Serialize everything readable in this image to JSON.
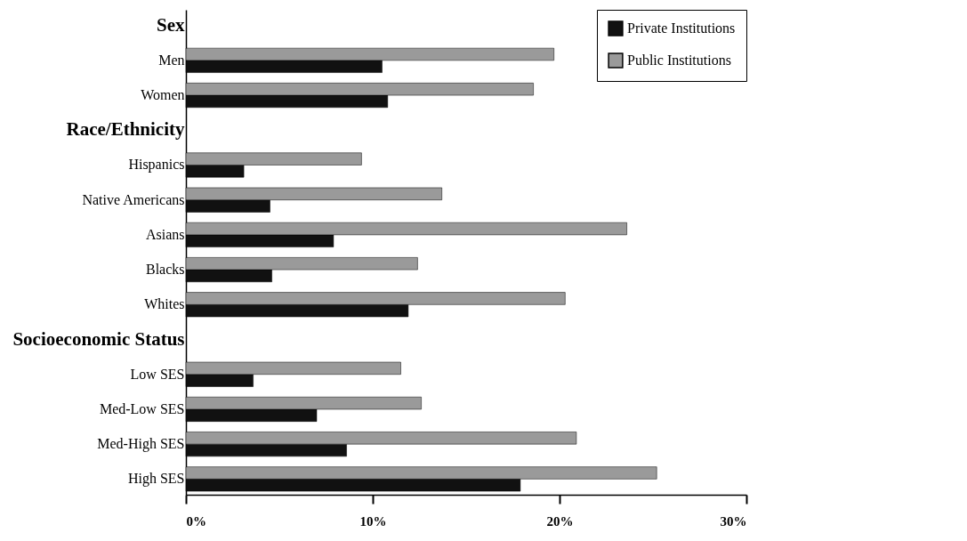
{
  "chart_data": {
    "type": "bar",
    "orientation": "horizontal",
    "categories": [
      "Sex",
      "Men",
      "Women",
      "Race/Ethnicity",
      "Hispanics",
      "Native Americans",
      "Asians",
      "Blacks",
      "Whites",
      "Socioeconomic  Status",
      "Low SES",
      "Med-Low SES",
      "Med-High SES",
      "High SES"
    ],
    "series": [
      {
        "name": "Private Institutions",
        "color": "#111111",
        "values": [
          null,
          10.5,
          10.8,
          null,
          3.1,
          4.5,
          7.9,
          4.6,
          11.9,
          null,
          3.6,
          7.0,
          8.6,
          17.9
        ]
      },
      {
        "name": "Public Institutions",
        "color": "#9a9a9a",
        "values": [
          null,
          19.7,
          18.6,
          null,
          9.4,
          13.7,
          23.6,
          12.4,
          20.3,
          null,
          11.5,
          12.6,
          20.9,
          25.2
        ]
      }
    ],
    "xlim": [
      0,
      30
    ],
    "xticks": [
      {
        "value": 0,
        "label": "0%"
      },
      {
        "value": 10,
        "label": "10%"
      },
      {
        "value": 20,
        "label": "20%"
      },
      {
        "value": 30,
        "label": "30%"
      }
    ],
    "legend": "top right",
    "grid": false
  }
}
